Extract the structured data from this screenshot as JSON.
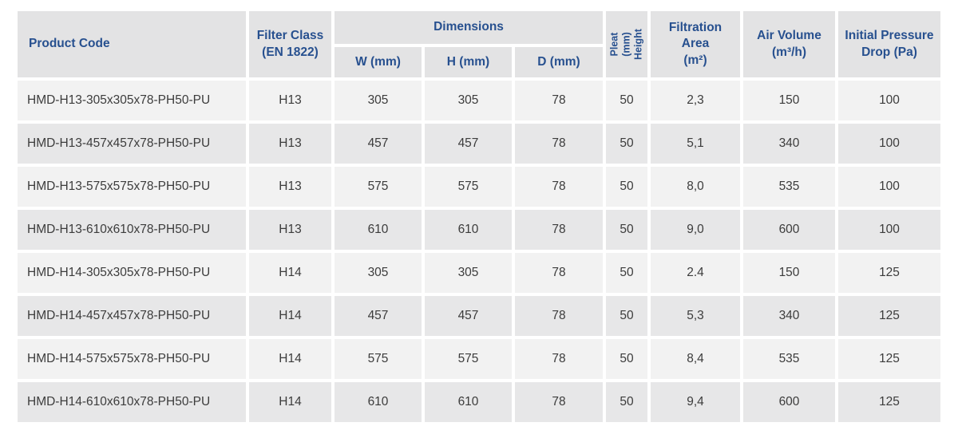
{
  "colors": {
    "header_text": "#27508f",
    "cell_text": "#3c3c3c",
    "header_bg": "#e3e3e4",
    "row_bg_light": "#f2f2f2",
    "row_bg_dark": "#e7e7e8"
  },
  "table": {
    "headers": {
      "product_code": "Product Code",
      "filter_class": "Filter Class\n(EN 1822)",
      "dimensions": "Dimensions",
      "w": "W (mm)",
      "h": "H (mm)",
      "d": "D (mm)",
      "pleat_height": "Pleat (mm)\nHeight",
      "filtration_area": "Filtration\nArea\n(m²)",
      "air_volume": "Air Volume\n(m³/h)",
      "initial_pressure_drop": "Initial Pressure\nDrop (Pa)"
    },
    "column_keys": [
      "product_code",
      "filter_class",
      "w",
      "h",
      "d",
      "pleat_height",
      "filtration_area",
      "air_volume",
      "pressure_drop"
    ],
    "rows": [
      {
        "product_code": "HMD-H13-305x305x78-PH50-PU",
        "filter_class": "H13",
        "w": "305",
        "h": "305",
        "d": "78",
        "pleat_height": "50",
        "filtration_area": "2,3",
        "air_volume": "150",
        "pressure_drop": "100"
      },
      {
        "product_code": "HMD-H13-457x457x78-PH50-PU",
        "filter_class": "H13",
        "w": "457",
        "h": "457",
        "d": "78",
        "pleat_height": "50",
        "filtration_area": "5,1",
        "air_volume": "340",
        "pressure_drop": "100"
      },
      {
        "product_code": "HMD-H13-575x575x78-PH50-PU",
        "filter_class": "H13",
        "w": "575",
        "h": "575",
        "d": "78",
        "pleat_height": "50",
        "filtration_area": "8,0",
        "air_volume": "535",
        "pressure_drop": "100"
      },
      {
        "product_code": "HMD-H13-610x610x78-PH50-PU",
        "filter_class": "H13",
        "w": "610",
        "h": "610",
        "d": "78",
        "pleat_height": "50",
        "filtration_area": "9,0",
        "air_volume": "600",
        "pressure_drop": "100"
      },
      {
        "product_code": "HMD-H14-305x305x78-PH50-PU",
        "filter_class": "H14",
        "w": "305",
        "h": "305",
        "d": "78",
        "pleat_height": "50",
        "filtration_area": "2.4",
        "air_volume": "150",
        "pressure_drop": "125"
      },
      {
        "product_code": "HMD-H14-457x457x78-PH50-PU",
        "filter_class": "H14",
        "w": "457",
        "h": "457",
        "d": "78",
        "pleat_height": "50",
        "filtration_area": "5,3",
        "air_volume": "340",
        "pressure_drop": "125"
      },
      {
        "product_code": "HMD-H14-575x575x78-PH50-PU",
        "filter_class": "H14",
        "w": "575",
        "h": "575",
        "d": "78",
        "pleat_height": "50",
        "filtration_area": "8,4",
        "air_volume": "535",
        "pressure_drop": "125"
      },
      {
        "product_code": "HMD-H14-610x610x78-PH50-PU",
        "filter_class": "H14",
        "w": "610",
        "h": "610",
        "d": "78",
        "pleat_height": "50",
        "filtration_area": "9,4",
        "air_volume": "600",
        "pressure_drop": "125"
      }
    ]
  }
}
